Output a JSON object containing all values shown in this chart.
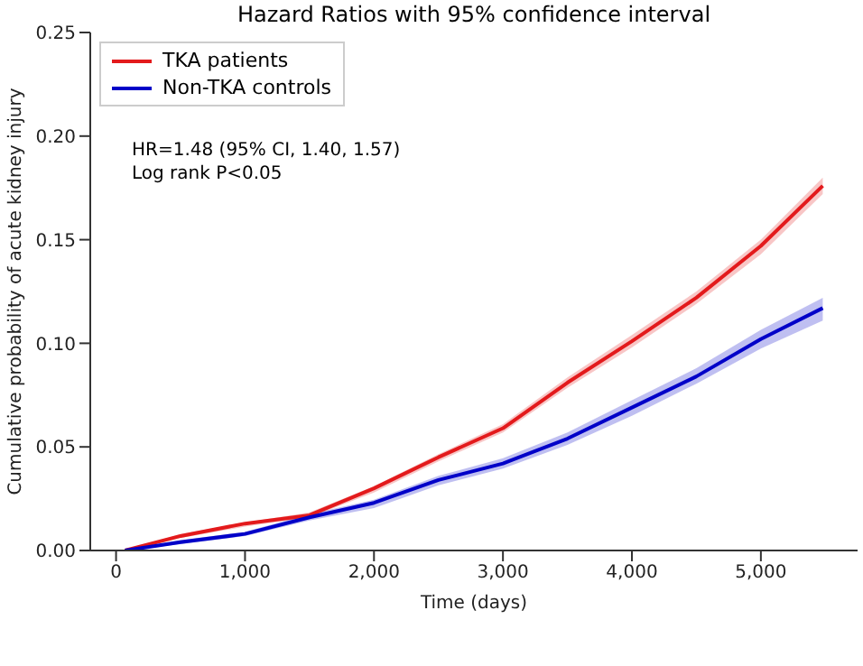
{
  "chart_data": {
    "type": "line",
    "title": "Hazard Ratios with 95% confidence interval",
    "xlabel": "Time (days)",
    "ylabel": "Cumulative probability of acute kidney injury",
    "x": [
      70,
      500,
      1000,
      1500,
      2000,
      2500,
      3000,
      3500,
      4000,
      4500,
      5000,
      5480
    ],
    "series": [
      {
        "name": "TKA patients",
        "color": "#e31a1c",
        "values": [
          0,
          0.007,
          0.013,
          0.017,
          0.03,
          0.045,
          0.059,
          0.081,
          0.101,
          0.122,
          0.147,
          0.176
        ],
        "lower": [
          0,
          0.006,
          0.0115,
          0.016,
          0.028,
          0.043,
          0.057,
          0.0785,
          0.098,
          0.119,
          0.143,
          0.172
        ],
        "upper": [
          0,
          0.008,
          0.0135,
          0.0184,
          0.031,
          0.0465,
          0.061,
          0.0835,
          0.104,
          0.125,
          0.15,
          0.18
        ]
      },
      {
        "name": "Non-TKA controls",
        "color": "#0000c8",
        "values": [
          0,
          0.004,
          0.008,
          0.016,
          0.023,
          0.034,
          0.042,
          0.054,
          0.069,
          0.084,
          0.102,
          0.117
        ],
        "lower": [
          0,
          0.003,
          0.007,
          0.0145,
          0.0205,
          0.0315,
          0.0395,
          0.051,
          0.065,
          0.0805,
          0.0975,
          0.111
        ],
        "upper": [
          0,
          0.005,
          0.009,
          0.0175,
          0.0245,
          0.036,
          0.0445,
          0.057,
          0.0725,
          0.088,
          0.1065,
          0.122
        ]
      }
    ],
    "xlim": [
      -200,
      5750
    ],
    "ylim": [
      0,
      0.25
    ],
    "xticks": [
      0,
      {
        "value": 1000,
        "label": "1,000"
      },
      {
        "value": 2000,
        "label": "2,000"
      },
      {
        "value": 3000,
        "label": "3,000"
      },
      {
        "value": 4000,
        "label": "4,000"
      },
      {
        "value": 5000,
        "label": "5,000"
      }
    ],
    "yticks": [
      {
        "value": 0,
        "label": "0.00"
      },
      {
        "value": 0.05,
        "label": "0.05"
      },
      {
        "value": 0.1,
        "label": "0.10"
      },
      {
        "value": 0.15,
        "label": "0.15"
      },
      {
        "value": 0.2,
        "label": "0.20"
      },
      {
        "value": 0.25,
        "label": "0.25"
      }
    ],
    "annotations": [
      "HR=1.48 (95% CI, 1.40, 1.57)",
      "Log rank P<0.05"
    ],
    "legend": "top left",
    "grid": false,
    "marker": "none",
    "line_style": "solid"
  }
}
